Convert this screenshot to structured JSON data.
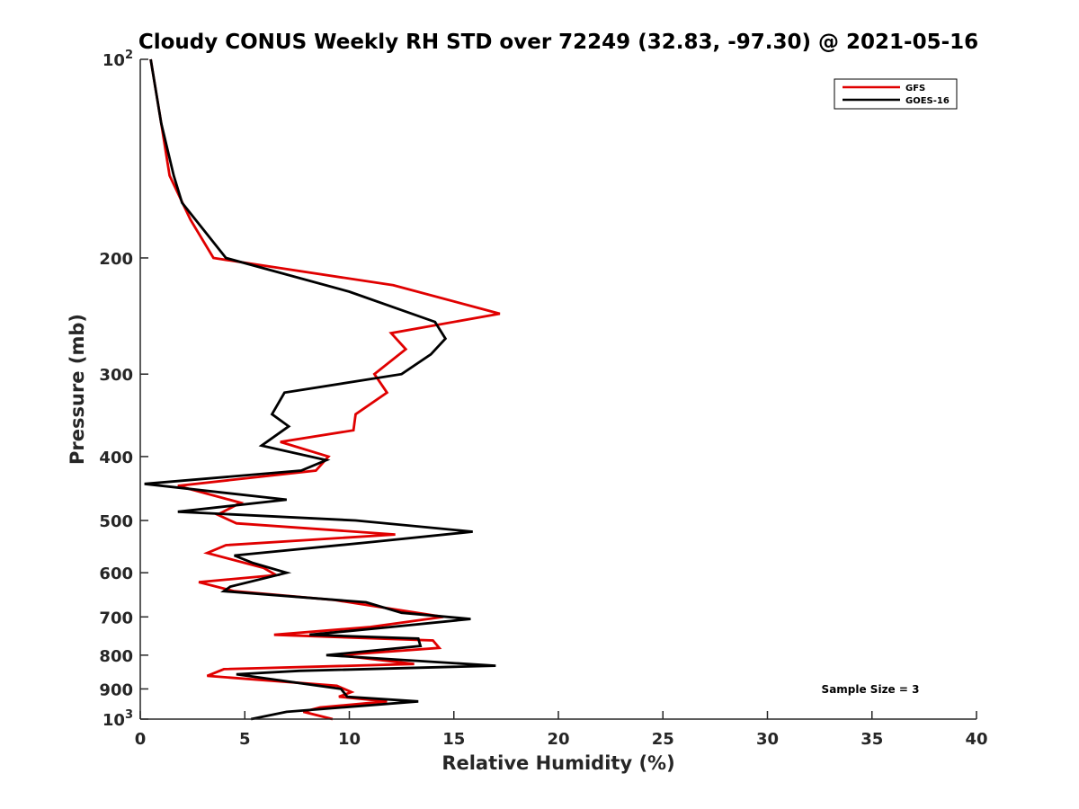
{
  "chart_data": {
    "type": "line",
    "title": "Cloudy CONUS Weekly RH STD over 72249 (32.83, -97.30) @ 2021-05-16",
    "xlabel": "Relative Humidity (%)",
    "ylabel": "Pressure (mb)",
    "xlim": [
      0,
      40
    ],
    "ylim": [
      100,
      1000
    ],
    "y_scale": "log",
    "y_reversed": true,
    "grid": false,
    "legend_placement": "top-right",
    "x_ticks": [
      0,
      5,
      10,
      15,
      20,
      25,
      30,
      35,
      40
    ],
    "x_tick_labels": [
      "0",
      "5",
      "10",
      "15",
      "20",
      "25",
      "30",
      "35",
      "40"
    ],
    "y_ticks": [
      100,
      200,
      300,
      400,
      500,
      600,
      700,
      800,
      900,
      1000
    ],
    "y_tick_labels": [
      {
        "base": "10",
        "exp": "2"
      },
      {
        "base": "200",
        "exp": ""
      },
      {
        "base": "300",
        "exp": ""
      },
      {
        "base": "400",
        "exp": ""
      },
      {
        "base": "500",
        "exp": ""
      },
      {
        "base": "600",
        "exp": ""
      },
      {
        "base": "700",
        "exp": ""
      },
      {
        "base": "800",
        "exp": ""
      },
      {
        "base": "900",
        "exp": ""
      },
      {
        "base": "10",
        "exp": "3"
      }
    ],
    "annotation": "Sample Size = 3",
    "series": [
      {
        "name": "GFS",
        "color": "#e00000",
        "points": [
          [
            0.5,
            100
          ],
          [
            1.0,
            125
          ],
          [
            1.4,
            150
          ],
          [
            2.4,
            175
          ],
          [
            3.5,
            200
          ],
          [
            12.1,
            220
          ],
          [
            17.2,
            243
          ],
          [
            12.0,
            260
          ],
          [
            12.7,
            275
          ],
          [
            11.2,
            300
          ],
          [
            11.8,
            320
          ],
          [
            10.3,
            345
          ],
          [
            10.2,
            365
          ],
          [
            6.7,
            380
          ],
          [
            9.0,
            400
          ],
          [
            8.4,
            420
          ],
          [
            1.8,
            443
          ],
          [
            4.8,
            470
          ],
          [
            3.7,
            490
          ],
          [
            4.6,
            505
          ],
          [
            12.2,
            525
          ],
          [
            4.1,
            545
          ],
          [
            3.2,
            560
          ],
          [
            5.9,
            590
          ],
          [
            6.5,
            605
          ],
          [
            2.8,
            620
          ],
          [
            4.5,
            640
          ],
          [
            9.3,
            660
          ],
          [
            14.5,
            700
          ],
          [
            11.0,
            725
          ],
          [
            6.4,
            745
          ],
          [
            14.0,
            760
          ],
          [
            14.3,
            780
          ],
          [
            9.5,
            800
          ],
          [
            13.1,
            825
          ],
          [
            4.0,
            840
          ],
          [
            3.2,
            860
          ],
          [
            9.4,
            890
          ],
          [
            10.1,
            910
          ],
          [
            9.5,
            925
          ],
          [
            11.8,
            940
          ],
          [
            8.6,
            960
          ],
          [
            7.8,
            975
          ],
          [
            9.2,
            1000
          ]
        ]
      },
      {
        "name": "GOES-16",
        "color": "#000000",
        "points": [
          [
            0.5,
            100
          ],
          [
            1.0,
            125
          ],
          [
            1.6,
            150
          ],
          [
            2.0,
            165
          ],
          [
            4.1,
            200
          ],
          [
            10.0,
            225
          ],
          [
            14.1,
            250
          ],
          [
            14.6,
            265
          ],
          [
            13.9,
            280
          ],
          [
            12.5,
            300
          ],
          [
            6.9,
            320
          ],
          [
            6.3,
            345
          ],
          [
            7.1,
            360
          ],
          [
            5.8,
            385
          ],
          [
            8.9,
            405
          ],
          [
            7.7,
            420
          ],
          [
            0.2,
            440
          ],
          [
            7.0,
            465
          ],
          [
            1.8,
            485
          ],
          [
            10.3,
            500
          ],
          [
            15.9,
            520
          ],
          [
            10.8,
            540
          ],
          [
            4.5,
            565
          ],
          [
            5.4,
            580
          ],
          [
            7.0,
            600
          ],
          [
            4.3,
            630
          ],
          [
            4.0,
            640
          ],
          [
            10.8,
            665
          ],
          [
            12.5,
            690
          ],
          [
            15.8,
            705
          ],
          [
            12.0,
            725
          ],
          [
            8.1,
            745
          ],
          [
            13.3,
            755
          ],
          [
            13.4,
            775
          ],
          [
            8.9,
            800
          ],
          [
            17.0,
            830
          ],
          [
            7.6,
            845
          ],
          [
            4.6,
            855
          ],
          [
            9.6,
            900
          ],
          [
            9.9,
            925
          ],
          [
            13.3,
            940
          ],
          [
            7.0,
            975
          ],
          [
            5.3,
            1000
          ]
        ]
      }
    ]
  }
}
